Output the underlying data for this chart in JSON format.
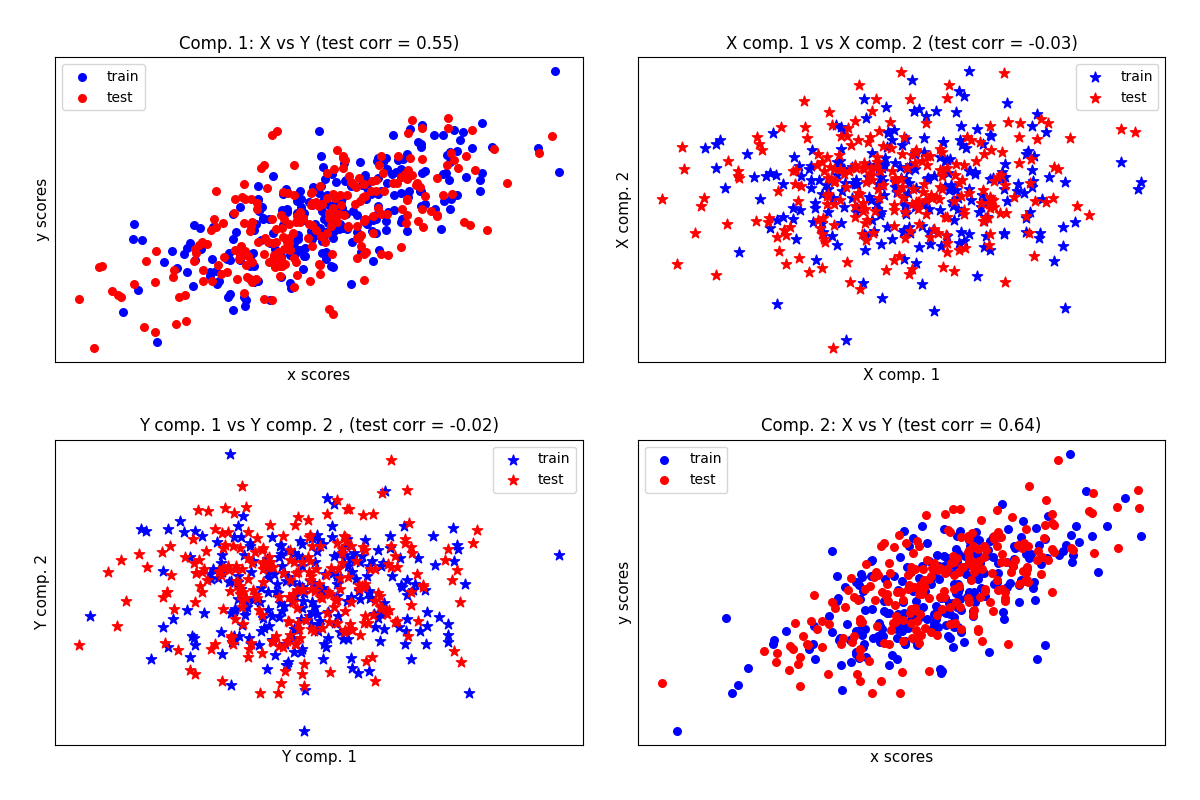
{
  "titles": [
    "Comp. 1: X vs Y (test corr = 0.55)",
    "X comp. 1 vs X comp. 2 (test corr = -0.03)",
    "Y comp. 1 vs Y comp. 2 , (test corr = -0.02)",
    "Comp. 2: X vs Y (test corr = 0.64)"
  ],
  "xlabels": [
    "x scores",
    "X comp. 1",
    "Y comp. 1",
    "x scores"
  ],
  "ylabels": [
    "y scores",
    "X comp. 2",
    "Y comp. 2",
    "y scores"
  ],
  "train_color": "#0000ff",
  "test_color": "#ff0000",
  "marker_circle": "o",
  "marker_star": "*",
  "n_samples": 500,
  "random_state": 0,
  "background_color": "#ffffff",
  "title_fontsize": 12,
  "label_fontsize": 11,
  "legend_fontsize": 10,
  "scatter_size_circle": 30,
  "scatter_size_star": 60,
  "scatter_alpha": 1.0
}
